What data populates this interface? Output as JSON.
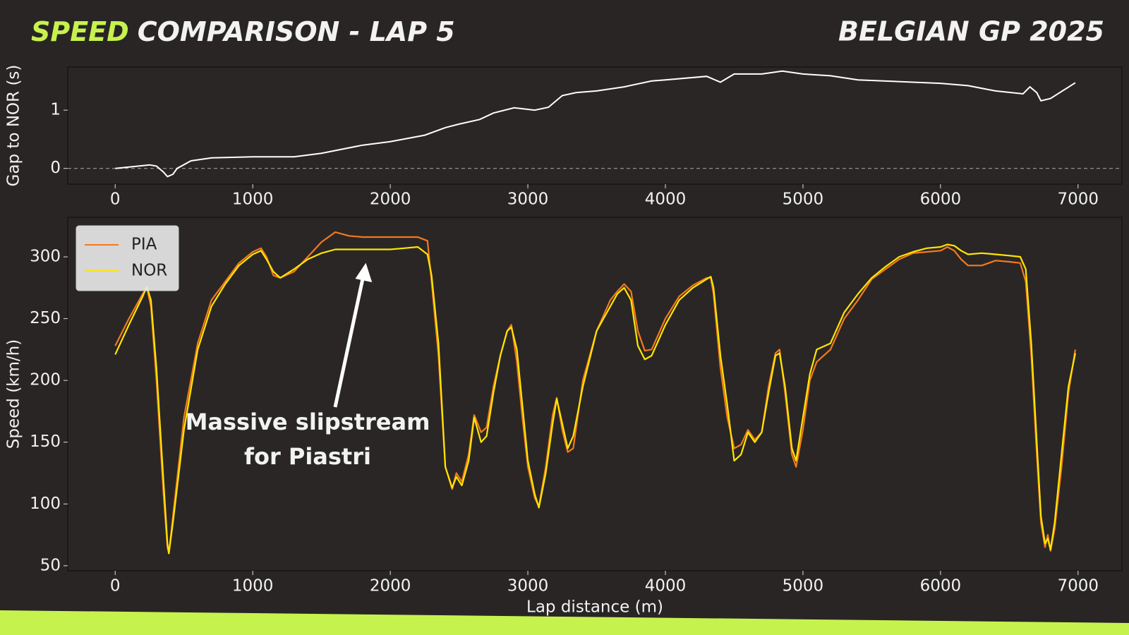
{
  "header": {
    "title_highlight": "SPEED",
    "title": "COMPARISON - LAP 5",
    "event": "BELGIAN GP 2025"
  },
  "chart_data": [
    {
      "type": "line",
      "ylabel": "Gap to NOR (s)",
      "color": "#ffffff",
      "reference_line": 0,
      "x": [
        0,
        250,
        300,
        350,
        380,
        420,
        450,
        550,
        700,
        1000,
        1300,
        1500,
        1800,
        2000,
        2250,
        2400,
        2500,
        2650,
        2750,
        2900,
        3050,
        3150,
        3250,
        3350,
        3500,
        3700,
        3900,
        4000,
        4300,
        4400,
        4500,
        4700,
        4850,
        5000,
        5200,
        5400,
        6000,
        6200,
        6400,
        6600,
        6650,
        6700,
        6730,
        6800,
        6900,
        6980
      ],
      "values": [
        0,
        0.06,
        0.04,
        -0.06,
        -0.14,
        -0.1,
        0,
        0.13,
        0.18,
        0.2,
        0.2,
        0.26,
        0.4,
        0.46,
        0.57,
        0.7,
        0.76,
        0.84,
        0.95,
        1.04,
        1.0,
        1.05,
        1.25,
        1.3,
        1.33,
        1.4,
        1.5,
        1.52,
        1.58,
        1.48,
        1.62,
        1.62,
        1.67,
        1.62,
        1.59,
        1.52,
        1.46,
        1.42,
        1.33,
        1.28,
        1.4,
        1.3,
        1.16,
        1.2,
        1.35,
        1.47
      ],
      "xlim": [
        -345,
        7319
      ],
      "ylim": [
        -0.27,
        1.74
      ],
      "xticks": [
        0,
        1000,
        2000,
        3000,
        4000,
        5000,
        6000,
        7000
      ],
      "yticks": [
        0,
        1
      ],
      "grid": false
    },
    {
      "type": "line",
      "xlabel": "Lap distance (m)",
      "ylabel": "Speed (km/h)",
      "legend": "upper left",
      "annotation": [
        "Massive slipstream",
        "for Piastri"
      ],
      "x": [
        0,
        100,
        200,
        230,
        260,
        300,
        350,
        380,
        390,
        420,
        500,
        600,
        700,
        800,
        900,
        1000,
        1060,
        1100,
        1150,
        1200,
        1300,
        1400,
        1500,
        1600,
        1700,
        1800,
        2000,
        2100,
        2200,
        2270,
        2300,
        2350,
        2400,
        2450,
        2480,
        2520,
        2570,
        2610,
        2660,
        2700,
        2750,
        2800,
        2850,
        2880,
        2920,
        2960,
        3000,
        3050,
        3080,
        3130,
        3180,
        3210,
        3250,
        3290,
        3330,
        3400,
        3500,
        3600,
        3650,
        3700,
        3750,
        3800,
        3850,
        3900,
        4000,
        4100,
        4200,
        4300,
        4330,
        4350,
        4400,
        4450,
        4500,
        4550,
        4600,
        4650,
        4700,
        4750,
        4800,
        4830,
        4870,
        4920,
        4950,
        5000,
        5050,
        5100,
        5200,
        5300,
        5400,
        5500,
        5600,
        5700,
        5800,
        5900,
        6000,
        6050,
        6100,
        6150,
        6200,
        6300,
        6400,
        6500,
        6580,
        6620,
        6660,
        6700,
        6730,
        6760,
        6780,
        6800,
        6830,
        6880,
        6930,
        6980
      ],
      "series": [
        {
          "name": "PIA",
          "color": "#f47a1c",
          "values": [
            228,
            250,
            270,
            275,
            260,
            200,
            110,
            65,
            60,
            90,
            170,
            230,
            265,
            280,
            295,
            304,
            307,
            300,
            285,
            283,
            288,
            300,
            312,
            320,
            317,
            316,
            316,
            316,
            316,
            313,
            280,
            220,
            130,
            112,
            125,
            118,
            140,
            172,
            158,
            162,
            195,
            220,
            240,
            245,
            215,
            170,
            130,
            105,
            98,
            130,
            172,
            186,
            160,
            142,
            145,
            200,
            240,
            265,
            272,
            278,
            272,
            240,
            224,
            225,
            250,
            268,
            277,
            283,
            283,
            270,
            210,
            170,
            145,
            148,
            160,
            152,
            158,
            195,
            222,
            225,
            190,
            140,
            130,
            160,
            200,
            215,
            225,
            250,
            265,
            282,
            290,
            298,
            303,
            304,
            305,
            308,
            305,
            298,
            293,
            293,
            297,
            296,
            295,
            280,
            220,
            140,
            85,
            65,
            75,
            62,
            80,
            130,
            190,
            225
          ]
        },
        {
          "name": "NOR",
          "color": "#ffe600",
          "values": [
            221,
            245,
            268,
            276,
            265,
            210,
            120,
            68,
            60,
            85,
            160,
            225,
            260,
            278,
            293,
            302,
            305,
            298,
            288,
            283,
            290,
            298,
            303,
            306,
            306,
            306,
            306,
            307,
            308,
            302,
            285,
            230,
            130,
            113,
            122,
            115,
            135,
            170,
            150,
            155,
            190,
            220,
            240,
            243,
            225,
            180,
            135,
            108,
            97,
            125,
            165,
            185,
            165,
            145,
            155,
            195,
            240,
            260,
            270,
            275,
            265,
            228,
            217,
            220,
            245,
            265,
            275,
            282,
            284,
            275,
            220,
            180,
            135,
            140,
            158,
            150,
            158,
            190,
            220,
            222,
            195,
            145,
            135,
            170,
            205,
            225,
            230,
            255,
            270,
            283,
            292,
            300,
            304,
            307,
            308,
            310,
            309,
            305,
            302,
            303,
            302,
            301,
            300,
            290,
            230,
            150,
            90,
            68,
            72,
            63,
            85,
            140,
            195,
            222
          ]
        }
      ],
      "xlim": [
        -345,
        7319
      ],
      "ylim": [
        45.9,
        332
      ],
      "xticks": [
        0,
        1000,
        2000,
        3000,
        4000,
        5000,
        6000,
        7000
      ],
      "yticks": [
        50,
        100,
        150,
        200,
        250,
        300
      ],
      "grid": false
    }
  ]
}
